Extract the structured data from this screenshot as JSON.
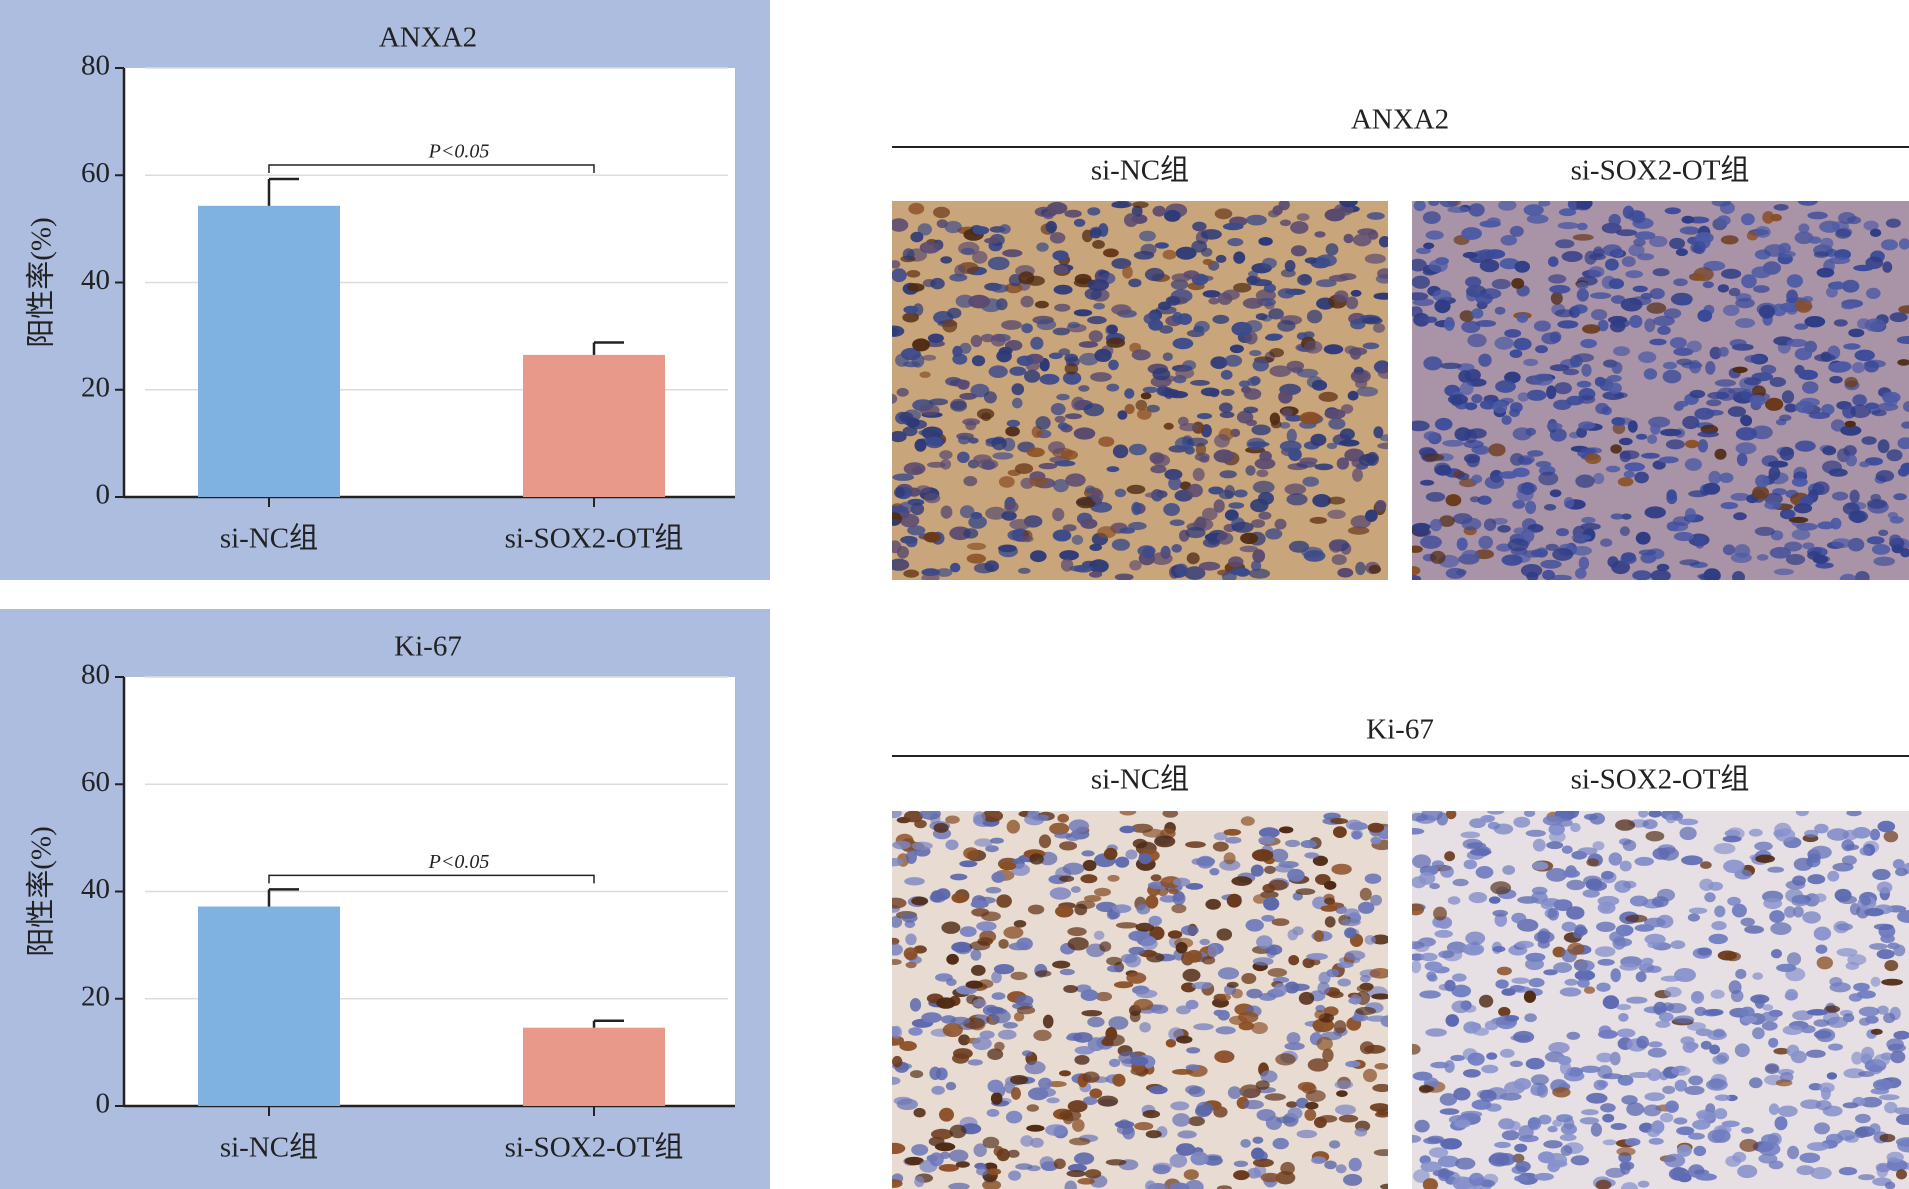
{
  "chart_data": [
    {
      "type": "bar",
      "title": "ANXA2",
      "y_label": "阳性率(%)",
      "categories": [
        "si-NC组",
        "si-SOX2-OT组"
      ],
      "values": [
        54.3,
        26.5
      ],
      "errors": [
        5,
        2.3
      ],
      "colors": [
        "#7fb2e0",
        "#e8998a"
      ],
      "ylim": [
        0,
        80
      ],
      "yticks": [
        0,
        20,
        40,
        60,
        80
      ],
      "grid": true,
      "annotation": "P<0.05"
    },
    {
      "type": "bar",
      "title": "Ki-67",
      "y_label": "阳性率(%)",
      "categories": [
        "si-NC组",
        "si-SOX2-OT组"
      ],
      "values": [
        37.2,
        14.6
      ],
      "errors": [
        3.2,
        1.3
      ],
      "colors": [
        "#7fb2e0",
        "#e8998a"
      ],
      "ylim": [
        0,
        80
      ],
      "yticks": [
        0,
        20,
        40,
        60,
        80
      ],
      "grid": true,
      "annotation": "P<0.05"
    }
  ],
  "image_panels": [
    {
      "title": "ANXA2",
      "columns": [
        "si-NC组",
        "si-SOX2-OT组"
      ]
    },
    {
      "title": "Ki-67",
      "columns": [
        "si-NC组",
        "si-SOX2-OT组"
      ]
    }
  ]
}
